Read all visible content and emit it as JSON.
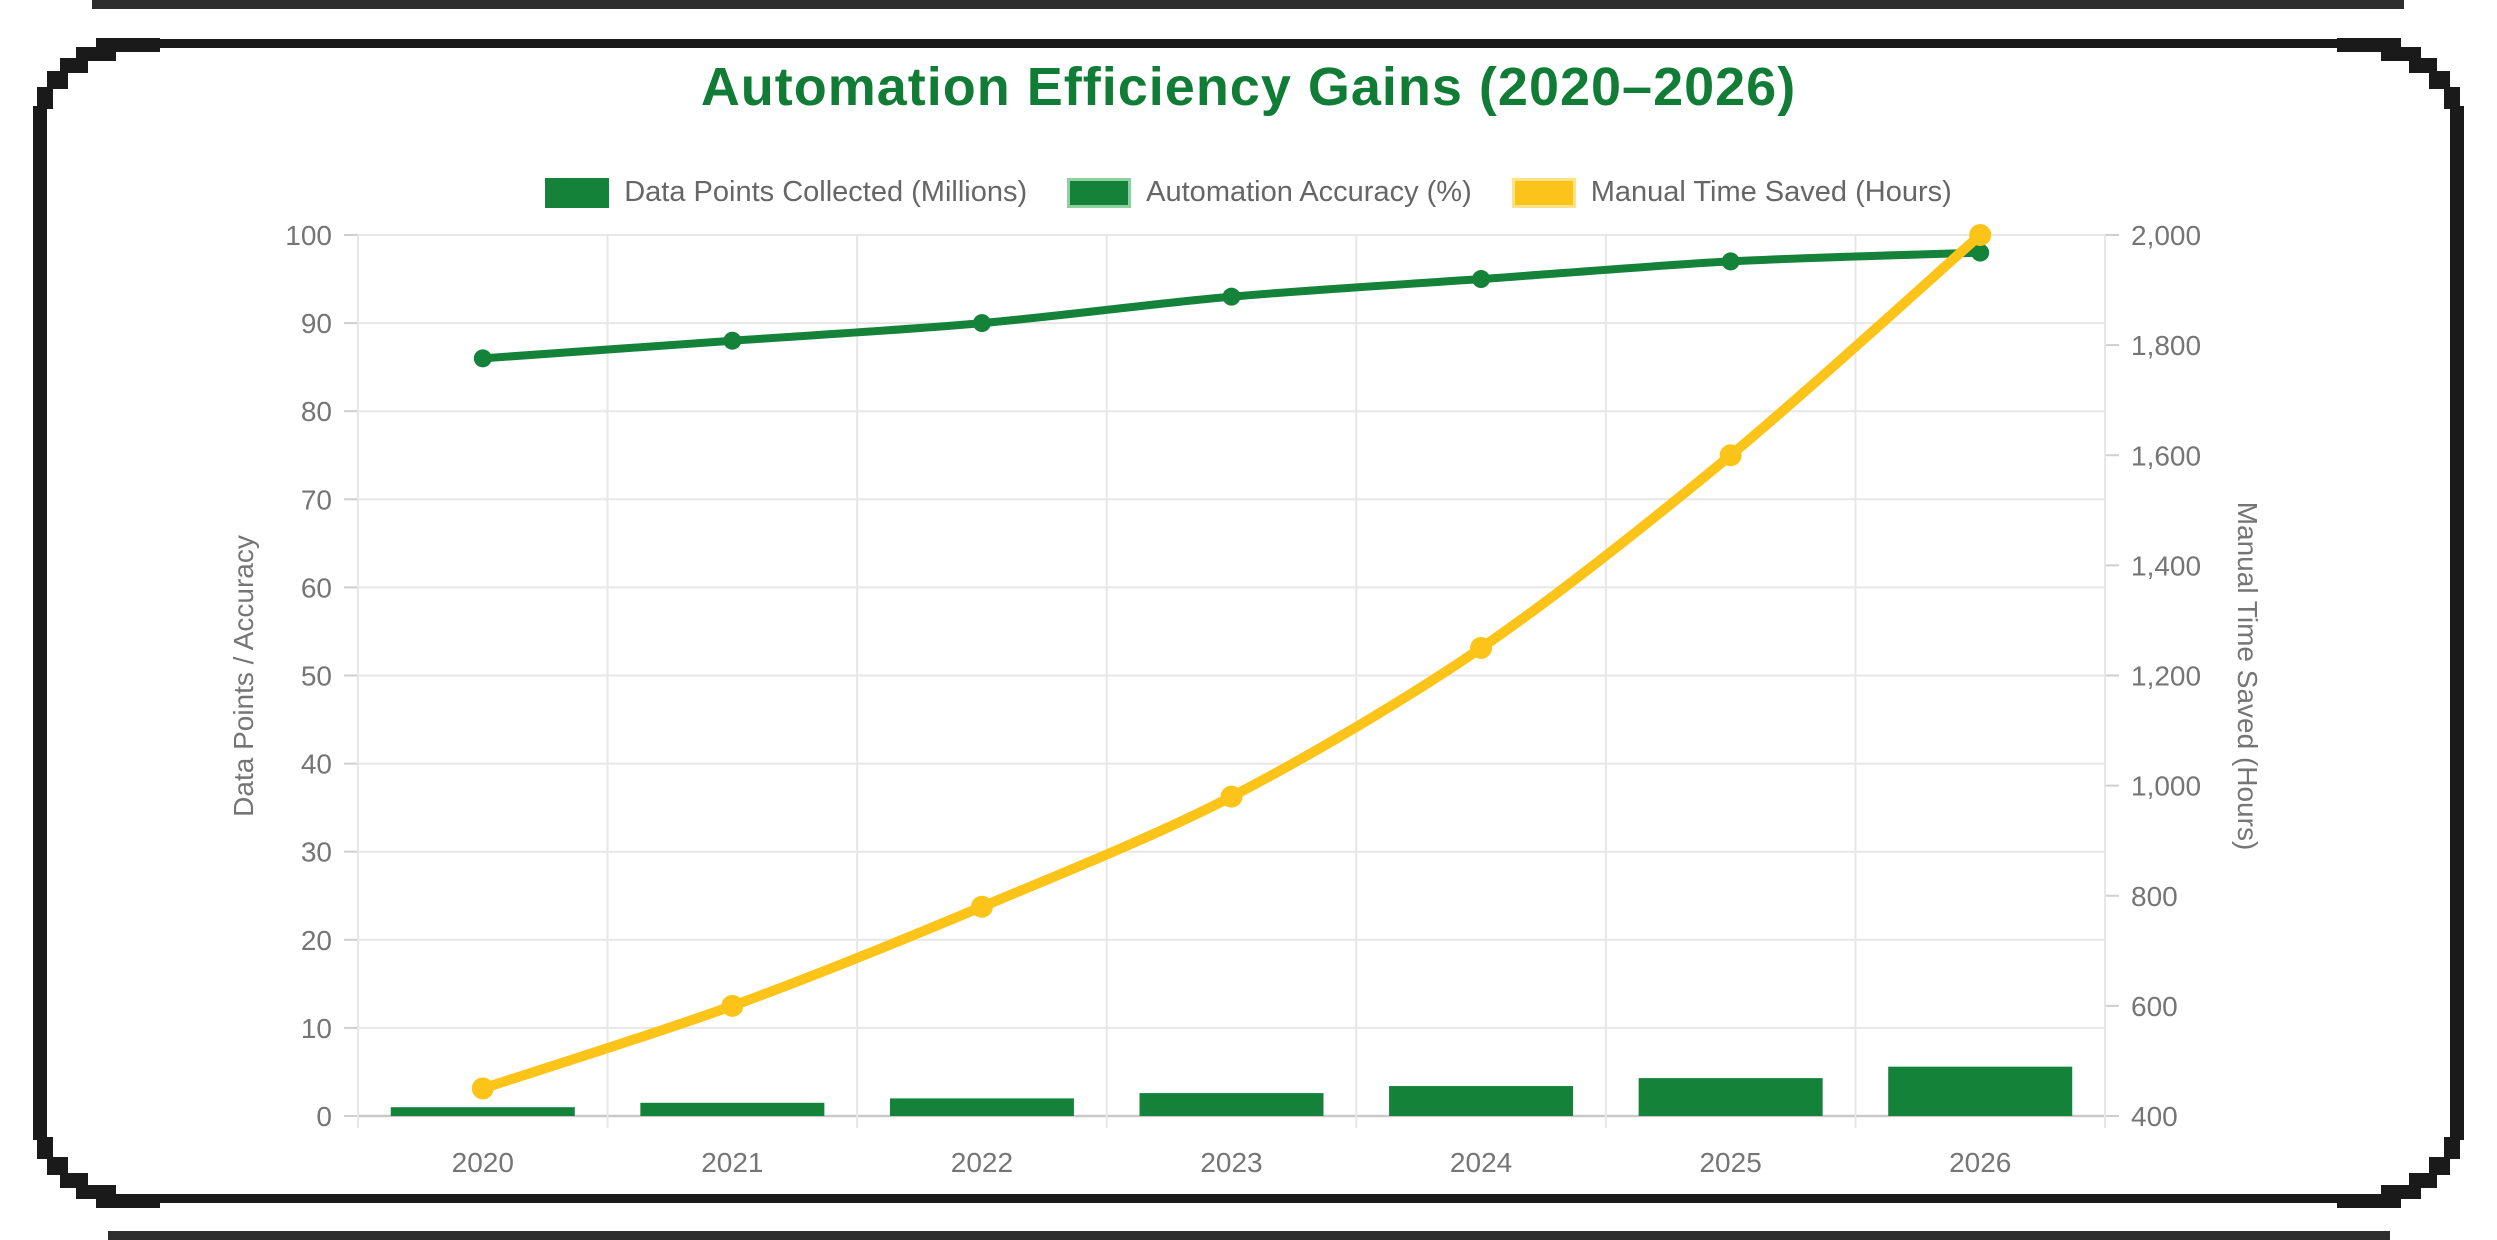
{
  "title": "Automation Efficiency Gains (2020–2026)",
  "frame": {
    "inner_border_color": "#1a1a1a",
    "outer_border_color": "#2e2e2e"
  },
  "colors": {
    "green": "#15823a",
    "yellow": "#fcc419",
    "grid": "#e7e7e7",
    "axis_line": "#c9c9c9",
    "tick_text": "#757575",
    "title_green": "#117c35"
  },
  "chart_data": {
    "type": "mixed",
    "categories": [
      "2020",
      "2021",
      "2022",
      "2023",
      "2024",
      "2025",
      "2026"
    ],
    "series": [
      {
        "name": "Data Points Collected (Millions)",
        "type": "bar",
        "axis": "left",
        "color": "#15823a",
        "swatch_border": null,
        "values": [
          1.0,
          1.5,
          2.0,
          2.6,
          3.4,
          4.3,
          5.6
        ]
      },
      {
        "name": "Automation Accuracy (%)",
        "type": "line",
        "axis": "left",
        "color": "#15823a",
        "swatch_border": "#8fd0a0",
        "values": [
          86,
          88,
          90,
          93,
          95,
          97,
          98
        ]
      },
      {
        "name": "Manual Time Saved (Hours)",
        "type": "line",
        "axis": "right",
        "color": "#fcc419",
        "swatch_border": "#fde289",
        "values": [
          450,
          600,
          780,
          980,
          1250,
          1600,
          2000
        ]
      }
    ],
    "left_axis": {
      "label": "Data Points / Accuracy",
      "min": 0,
      "max": 100,
      "ticks": [
        0,
        10,
        20,
        30,
        40,
        50,
        60,
        70,
        80,
        90,
        100
      ]
    },
    "right_axis": {
      "label": "Manual Time Saved (Hours)",
      "min": 400,
      "max": 2000,
      "ticks": [
        400,
        600,
        800,
        1000,
        1200,
        1400,
        1600,
        1800,
        2000
      ]
    },
    "grid": true,
    "legend_position": "top"
  }
}
